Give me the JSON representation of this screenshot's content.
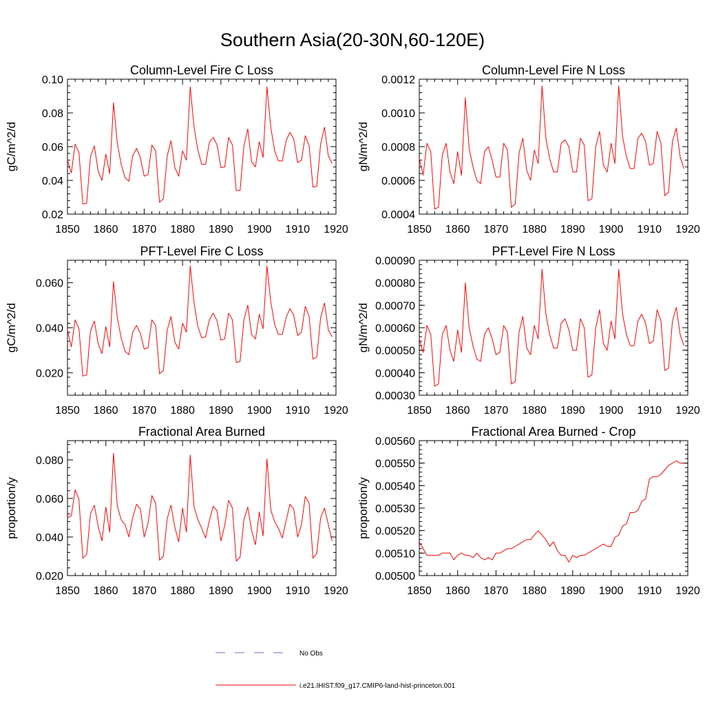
{
  "figure_title": "Southern Asia(20-30N,60-120E)",
  "legend": [
    {
      "label": "No Obs",
      "style": "dashed",
      "color": "#6a6ad0"
    },
    {
      "label": "i.e21.IHIST.f09_g17.CMIP6-land-hist-princeton.001",
      "style": "solid",
      "color": "#ff0000"
    }
  ],
  "chart_data": [
    {
      "type": "line",
      "title": "Column-Level Fire C Loss",
      "ylabel": "gC/m^2/d",
      "xlim": [
        1850,
        1920
      ],
      "ylim": [
        0.02,
        0.1
      ],
      "xticks": [
        1850,
        1860,
        1870,
        1880,
        1890,
        1900,
        1910,
        1920
      ],
      "xtick_labels": [
        "1850",
        "1860",
        "1870",
        "1880",
        "1890",
        "1900",
        "1910",
        "1920"
      ],
      "yticks": [
        0.02,
        0.04,
        0.06,
        0.08,
        0.1
      ],
      "ytick_labels": [
        "0.02",
        "0.04",
        "0.06",
        "0.08",
        "0.10"
      ],
      "x_start": 1850,
      "series": [
        {
          "color": "#ff0000",
          "values": [
            0.052,
            0.0445,
            0.0615,
            0.0565,
            0.026,
            0.0265,
            0.054,
            0.0605,
            0.0455,
            0.04,
            0.0555,
            0.044,
            0.086,
            0.062,
            0.0495,
            0.0415,
            0.0395,
            0.0545,
            0.059,
            0.0535,
            0.0425,
            0.0435,
            0.061,
            0.0575,
            0.027,
            0.029,
            0.0545,
            0.0635,
            0.0475,
            0.0425,
            0.0575,
            0.052,
            0.0955,
            0.0715,
            0.058,
            0.0495,
            0.0495,
            0.0625,
            0.0655,
            0.061,
            0.0475,
            0.048,
            0.0655,
            0.061,
            0.034,
            0.034,
            0.0605,
            0.0705,
            0.051,
            0.048,
            0.063,
            0.0535,
            0.0955,
            0.0715,
            0.0575,
            0.0515,
            0.0515,
            0.0635,
            0.0685,
            0.0645,
            0.0505,
            0.052,
            0.0665,
            0.0605,
            0.036,
            0.0365,
            0.0615,
            0.0715,
            0.0545,
            0.05
          ]
        }
      ]
    },
    {
      "type": "line",
      "title": "Column-Level Fire N Loss",
      "ylabel": "gN/m^2/d",
      "xlim": [
        1850,
        1920
      ],
      "ylim": [
        0.0004,
        0.0012
      ],
      "xticks": [
        1850,
        1860,
        1870,
        1880,
        1890,
        1900,
        1910,
        1920
      ],
      "xtick_labels": [
        "1850",
        "1860",
        "1870",
        "1880",
        "1890",
        "1900",
        "1910",
        "1920"
      ],
      "yticks": [
        0.0004,
        0.0006,
        0.0008,
        0.001,
        0.0012
      ],
      "ytick_labels": [
        "0.0004",
        "0.0006",
        "0.0008",
        "0.0010",
        "0.0012"
      ],
      "x_start": 1850,
      "series": [
        {
          "color": "#ff0000",
          "values": [
            0.00073,
            0.00063,
            0.00082,
            0.00077,
            0.00043,
            0.00044,
            0.00075,
            0.00082,
            0.00065,
            0.00058,
            0.00077,
            0.00063,
            0.00109,
            0.00079,
            0.00068,
            0.0006,
            0.00058,
            0.00077,
            0.0008,
            0.00072,
            0.00062,
            0.00062,
            0.00082,
            0.00078,
            0.00044,
            0.00046,
            0.00076,
            0.00085,
            0.00066,
            0.0006,
            0.00078,
            0.0007,
            0.00116,
            0.00085,
            0.00073,
            0.00065,
            0.00065,
            0.00082,
            0.00084,
            0.0008,
            0.00065,
            0.00065,
            0.00085,
            0.00081,
            0.00048,
            0.00049,
            0.0008,
            0.00089,
            0.00069,
            0.00065,
            0.00082,
            0.0007,
            0.00116,
            0.00086,
            0.00074,
            0.00067,
            0.00067,
            0.00085,
            0.00088,
            0.00083,
            0.00069,
            0.0007,
            0.00089,
            0.00082,
            0.00051,
            0.00053,
            0.00083,
            0.00091,
            0.00074,
            0.00067
          ]
        }
      ]
    },
    {
      "type": "line",
      "title": "PFT-Level Fire C Loss",
      "ylabel": "gC/m^2/d",
      "xlim": [
        1850,
        1920
      ],
      "ylim": [
        0.01,
        0.07
      ],
      "xticks": [
        1850,
        1860,
        1870,
        1880,
        1890,
        1900,
        1910,
        1920
      ],
      "xtick_labels": [
        "1850",
        "1860",
        "1870",
        "1880",
        "1890",
        "1900",
        "1910",
        "1920"
      ],
      "yticks": [
        0.02,
        0.04,
        0.06
      ],
      "ytick_labels": [
        "0.020",
        "0.040",
        "0.060"
      ],
      "x_start": 1850,
      "series": [
        {
          "color": "#ff0000",
          "values": [
            0.039,
            0.0315,
            0.0435,
            0.0395,
            0.0185,
            0.019,
            0.0385,
            0.043,
            0.033,
            0.0285,
            0.0405,
            0.0315,
            0.0605,
            0.0445,
            0.0355,
            0.0295,
            0.028,
            0.038,
            0.041,
            0.0375,
            0.0305,
            0.031,
            0.0435,
            0.041,
            0.0195,
            0.021,
            0.039,
            0.045,
            0.0335,
            0.0305,
            0.042,
            0.038,
            0.0675,
            0.051,
            0.0405,
            0.0355,
            0.036,
            0.0435,
            0.0465,
            0.043,
            0.0345,
            0.035,
            0.0465,
            0.0435,
            0.0245,
            0.025,
            0.0435,
            0.05,
            0.037,
            0.035,
            0.046,
            0.0395,
            0.0675,
            0.0515,
            0.0415,
            0.037,
            0.037,
            0.0445,
            0.0485,
            0.0455,
            0.0365,
            0.038,
            0.0495,
            0.045,
            0.026,
            0.027,
            0.0445,
            0.051,
            0.039,
            0.036
          ]
        }
      ]
    },
    {
      "type": "line",
      "title": "PFT-Level Fire N Loss",
      "ylabel": "gN/m^2/d",
      "xlim": [
        1850,
        1920
      ],
      "ylim": [
        0.0003,
        0.0009
      ],
      "xticks": [
        1850,
        1860,
        1870,
        1880,
        1890,
        1900,
        1910,
        1920
      ],
      "xtick_labels": [
        "1850",
        "1860",
        "1870",
        "1880",
        "1890",
        "1900",
        "1910",
        "1920"
      ],
      "yticks": [
        0.0003,
        0.0004,
        0.0005,
        0.0006,
        0.0007,
        0.0008,
        0.0009
      ],
      "ytick_labels": [
        "0.00030",
        "0.00040",
        "0.00050",
        "0.00060",
        "0.00070",
        "0.00080",
        "0.00090"
      ],
      "x_start": 1850,
      "series": [
        {
          "color": "#ff0000",
          "values": [
            0.00055,
            0.00049,
            0.00061,
            0.00057,
            0.00034,
            0.00035,
            0.00057,
            0.00061,
            0.0005,
            0.00045,
            0.00059,
            0.00049,
            0.0008,
            0.0006,
            0.00052,
            0.00046,
            0.00045,
            0.00057,
            0.0006,
            0.00055,
            0.00048,
            0.00049,
            0.00061,
            0.00058,
            0.00035,
            0.00036,
            0.00058,
            0.00065,
            0.00051,
            0.00048,
            0.00061,
            0.00055,
            0.00086,
            0.00066,
            0.00057,
            0.00051,
            0.00051,
            0.00062,
            0.00064,
            0.00059,
            0.0005,
            0.0005,
            0.00064,
            0.0006,
            0.00038,
            0.00039,
            0.0006,
            0.00068,
            0.00053,
            0.0005,
            0.00063,
            0.00055,
            0.00086,
            0.00066,
            0.00057,
            0.00052,
            0.00052,
            0.00063,
            0.00066,
            0.00062,
            0.00053,
            0.00054,
            0.00068,
            0.00063,
            0.00041,
            0.00042,
            0.00063,
            0.00069,
            0.00057,
            0.00052
          ]
        }
      ]
    },
    {
      "type": "line",
      "title": "Fractional Area Burned",
      "ylabel": "proportion/y",
      "xlim": [
        1850,
        1920
      ],
      "ylim": [
        0.02,
        0.09
      ],
      "xticks": [
        1850,
        1860,
        1870,
        1880,
        1890,
        1900,
        1910,
        1920
      ],
      "xtick_labels": [
        "1850",
        "1860",
        "1870",
        "1880",
        "1890",
        "1900",
        "1910",
        "1920"
      ],
      "yticks": [
        0.02,
        0.04,
        0.06,
        0.08
      ],
      "ytick_labels": [
        "0.020",
        "0.040",
        "0.060",
        "0.080"
      ],
      "x_start": 1850,
      "series": [
        {
          "color": "#ff0000",
          "values": [
            0.05,
            0.051,
            0.0645,
            0.0595,
            0.029,
            0.031,
            0.052,
            0.0565,
            0.0455,
            0.038,
            0.0555,
            0.0425,
            0.0835,
            0.056,
            0.049,
            0.0465,
            0.04,
            0.05,
            0.057,
            0.0545,
            0.04,
            0.047,
            0.0615,
            0.0575,
            0.028,
            0.03,
            0.0495,
            0.0565,
            0.045,
            0.0375,
            0.055,
            0.0425,
            0.0825,
            0.0555,
            0.049,
            0.0445,
            0.0395,
            0.0485,
            0.056,
            0.0535,
            0.038,
            0.046,
            0.059,
            0.055,
            0.0275,
            0.0295,
            0.049,
            0.0555,
            0.0435,
            0.036,
            0.053,
            0.0405,
            0.0805,
            0.054,
            0.048,
            0.0445,
            0.0395,
            0.0485,
            0.057,
            0.0545,
            0.04,
            0.0465,
            0.061,
            0.0575,
            0.029,
            0.0315,
            0.05,
            0.055,
            0.0465,
            0.038
          ]
        }
      ]
    },
    {
      "type": "line",
      "title": "Fractional Area Burned - Crop",
      "ylabel": "proportion/y",
      "xlim": [
        1850,
        1920
      ],
      "ylim": [
        0.005,
        0.0056
      ],
      "xticks": [
        1850,
        1860,
        1870,
        1880,
        1890,
        1900,
        1910,
        1920
      ],
      "xtick_labels": [
        "1850",
        "1860",
        "1870",
        "1880",
        "1890",
        "1900",
        "1910",
        "1920"
      ],
      "yticks": [
        0.005,
        0.0051,
        0.0052,
        0.0053,
        0.0054,
        0.0055,
        0.0056
      ],
      "ytick_labels": [
        "0.00500",
        "0.00510",
        "0.00520",
        "0.00530",
        "0.00540",
        "0.00550",
        "0.00560"
      ],
      "x_start": 1850,
      "series": [
        {
          "color": "#ff0000",
          "values": [
            0.00515,
            0.00512,
            0.00509,
            0.00509,
            0.00509,
            0.00509,
            0.0051,
            0.0051,
            0.0051,
            0.00507,
            0.00509,
            0.0051,
            0.00509,
            0.00509,
            0.00508,
            0.0051,
            0.00508,
            0.00507,
            0.00508,
            0.00507,
            0.0051,
            0.0051,
            0.00511,
            0.00512,
            0.00512,
            0.00513,
            0.00514,
            0.00515,
            0.00516,
            0.00516,
            0.00518,
            0.0052,
            0.00518,
            0.00516,
            0.00513,
            0.00515,
            0.00511,
            0.00509,
            0.00509,
            0.00506,
            0.00509,
            0.00508,
            0.00509,
            0.00509,
            0.0051,
            0.00511,
            0.00512,
            0.00513,
            0.00514,
            0.00513,
            0.00513,
            0.00517,
            0.00518,
            0.00522,
            0.00523,
            0.00528,
            0.00528,
            0.00529,
            0.00533,
            0.00534,
            0.00543,
            0.00544,
            0.00544,
            0.00545,
            0.00547,
            0.00549,
            0.0055,
            0.00551,
            0.0055,
            0.0055
          ]
        }
      ]
    }
  ]
}
